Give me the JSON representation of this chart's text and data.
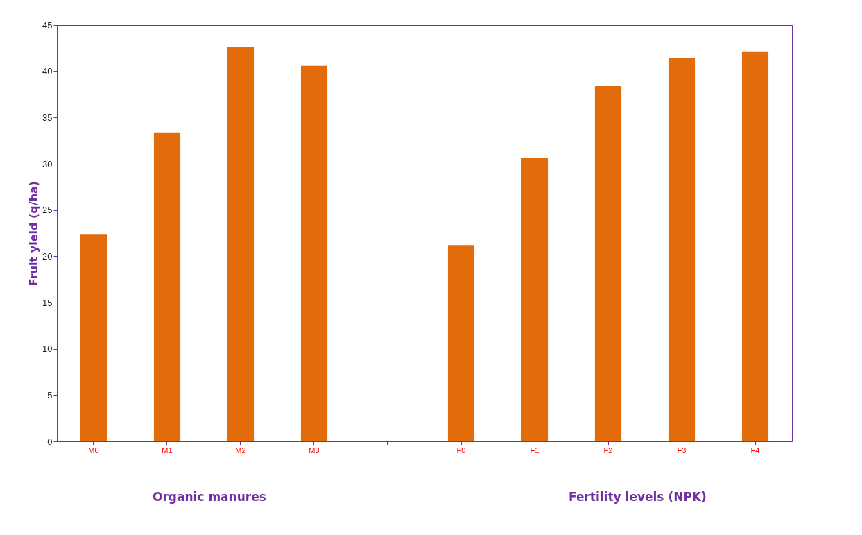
{
  "chart_data": {
    "type": "bar",
    "ylabel": "Fruit yield (q/ha)",
    "categories": [
      "M0",
      "M1",
      "M2",
      "M3",
      null,
      "F0",
      "F1",
      "F2",
      "F3",
      "F4"
    ],
    "values": [
      22.4,
      33.4,
      42.6,
      40.6,
      null,
      21.2,
      30.6,
      38.4,
      41.4,
      42.1
    ],
    "color": "#e36c0a",
    "ylim": [
      0,
      45
    ],
    "yticks": [
      0,
      5,
      10,
      15,
      20,
      25,
      30,
      35,
      40,
      45
    ],
    "grid": false,
    "annotations": [
      "Organic manures",
      "Fertility levels (NPK)"
    ]
  }
}
